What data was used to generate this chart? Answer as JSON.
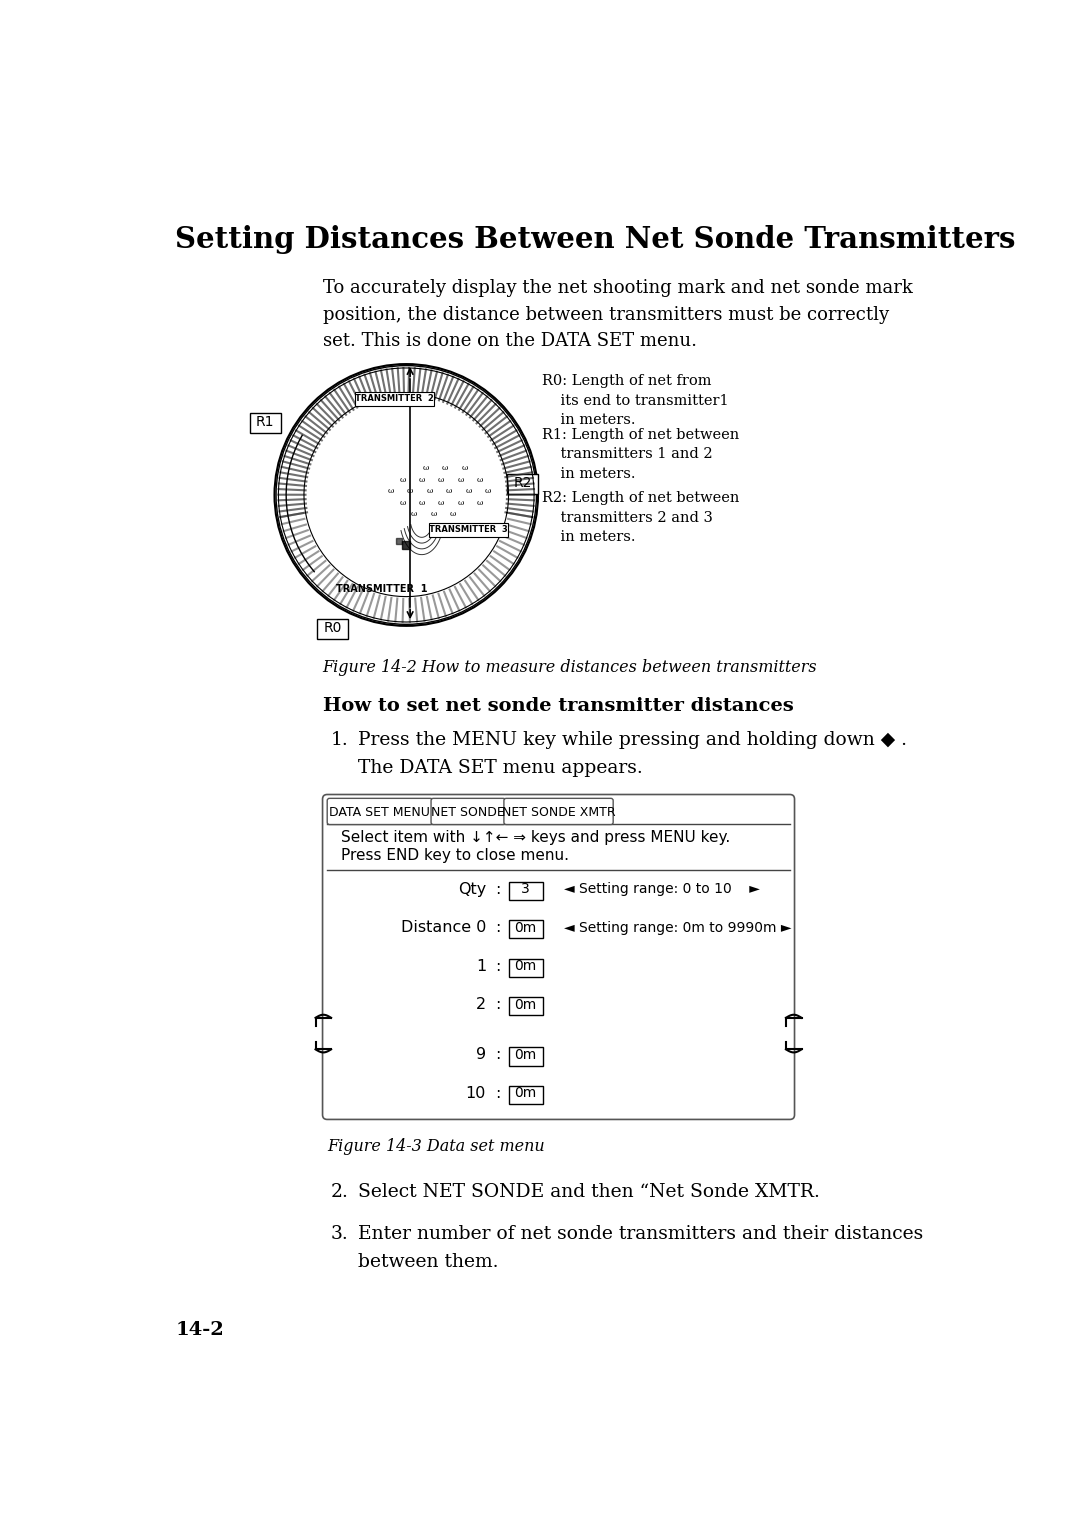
{
  "title": "Setting Distances Between Net Sonde Transmitters",
  "bg_color": "#ffffff",
  "text_color": "#000000",
  "intro_text": "To accurately display the net shooting mark and net sonde mark\nposition, the distance between transmitters must be correctly\nset. This is done on the DATA SET menu.",
  "fig_caption1": "Figure 14-2 How to measure distances between transmitters",
  "section_heading": "How to set net sonde transmitter distances",
  "step1_line1": "Press the MENU key while pressing and holding down ◆ .",
  "step1_line2": "The DATA SET menu appears.",
  "step2_text": "Select NET SONDE and then “Net Sonde XMTR.",
  "step3_line1": "Enter number of net sonde transmitters and their distances",
  "step3_line2": "between them.",
  "fig_caption2": "Figure 14-3 Data set menu",
  "page_num": "14-2",
  "menu_tab1": "DATA SET MENU",
  "menu_tab2": "NET SONDE",
  "menu_tab3": "NET SONDE XMTR",
  "menu_line1": "Select item with ↓↑← ⇒ keys and press MENU key.",
  "menu_line2": "Press END key to close menu.",
  "rows": [
    {
      "label": "Qty",
      "value": "3",
      "range": "◄ Setting range: 0 to 10    ►"
    },
    {
      "label": "Distance 0",
      "value": "0m",
      "range": "◄ Setting range: 0m to 9990m ►"
    },
    {
      "label": "1",
      "value": "0m",
      "range": ""
    },
    {
      "label": "2",
      "value": "0m",
      "range": ""
    },
    {
      "label": "9",
      "value": "0m",
      "range": ""
    },
    {
      "label": "10",
      "value": "0m",
      "range": ""
    }
  ],
  "r0_note": "R0: Length of net from\n    its end to transmitter1\n    in meters.",
  "r1_note": "R1: Length of net between\n    transmitters 1 and 2\n    in meters.",
  "r2_note": "R2: Length of net between\n    transmitters 2 and 3\n    in meters."
}
